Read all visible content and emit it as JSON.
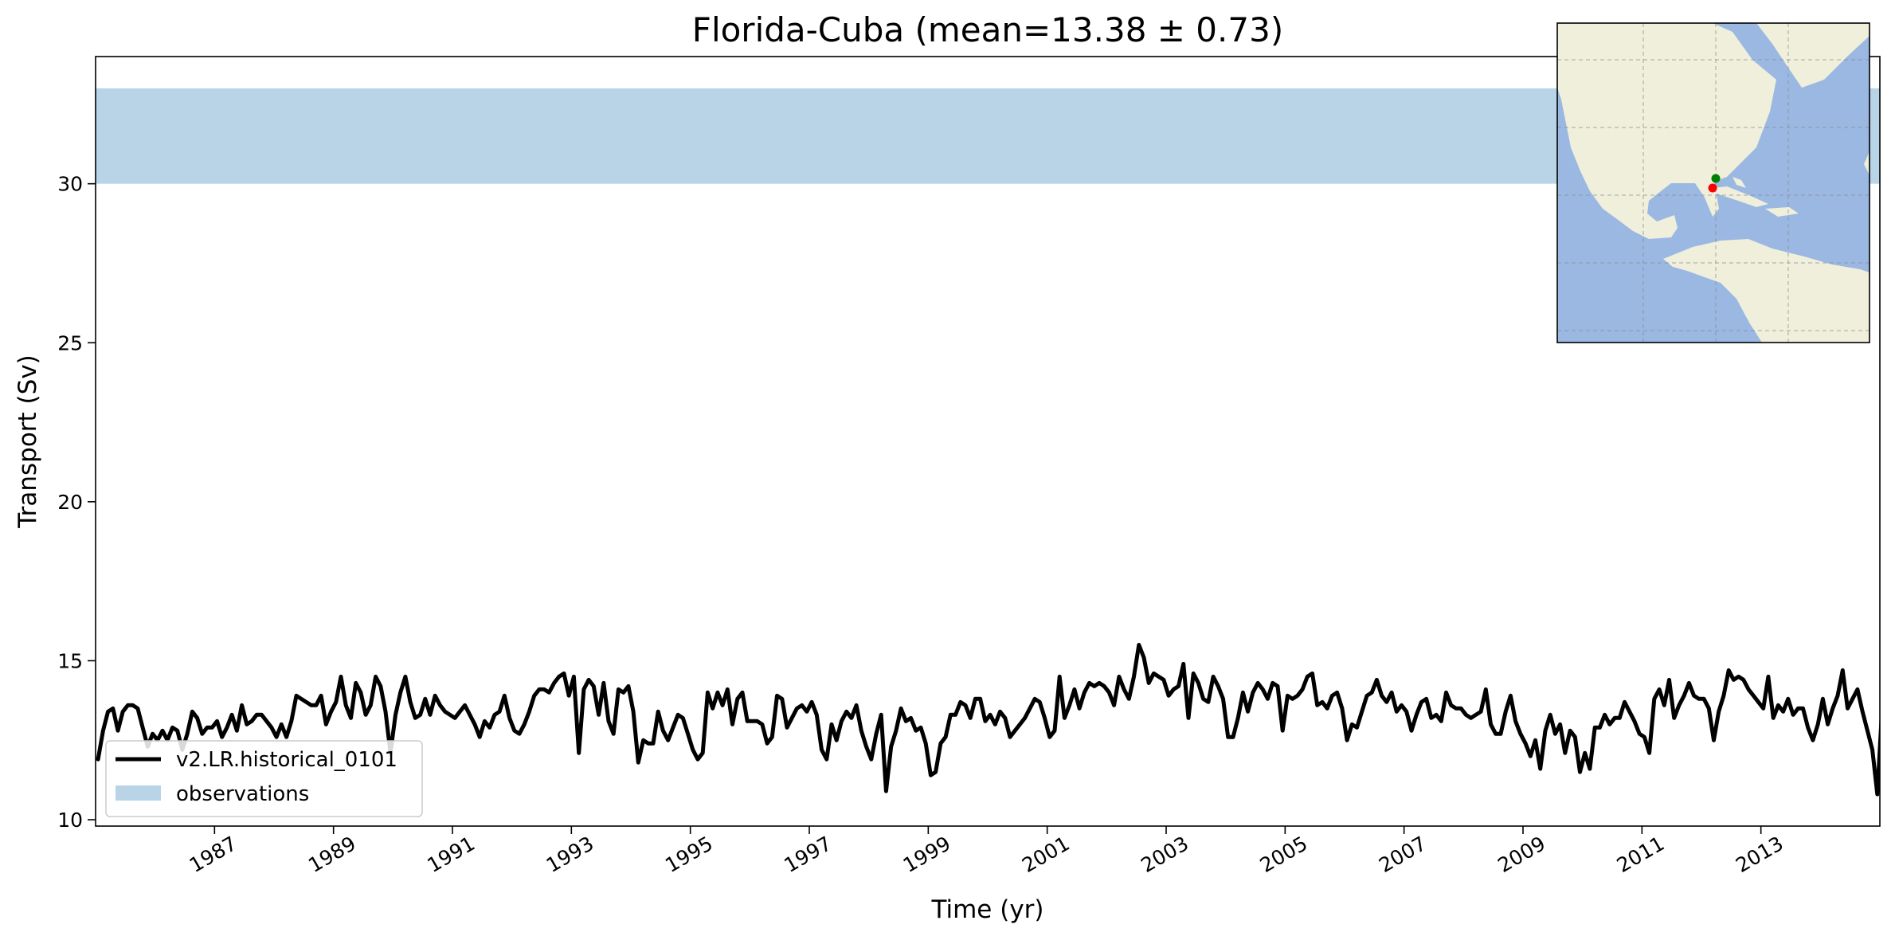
{
  "chart_data": {
    "type": "line",
    "title": "Florida-Cuba (mean=13.38 ± 0.73)",
    "xlabel": "Time (yr)",
    "ylabel": "Transport (Sv)",
    "xlim": [
      1985.0,
      2015.0
    ],
    "ylim": [
      9.8,
      34.0
    ],
    "x_ticks": [
      1987,
      1989,
      1991,
      1993,
      1995,
      1997,
      1999,
      2001,
      2003,
      2005,
      2007,
      2009,
      2011,
      2013
    ],
    "y_ticks": [
      10,
      15,
      20,
      25,
      30
    ],
    "grid": false,
    "legend_position": "lower-left",
    "observation_band": {
      "name": "observations",
      "y_range": [
        30.0,
        33.0
      ],
      "color": "#b9d4e7"
    },
    "series": [
      {
        "name": "v2.LR.historical_0101",
        "color": "#000000",
        "x_start": 1985.042,
        "x_step": 0.08333,
        "values": [
          11.9,
          12.8,
          13.4,
          13.5,
          12.8,
          13.4,
          13.6,
          13.6,
          13.5,
          12.9,
          12.3,
          12.7,
          12.5,
          12.8,
          12.5,
          12.9,
          12.8,
          12.2,
          12.7,
          13.4,
          13.2,
          12.7,
          12.9,
          12.9,
          13.1,
          12.6,
          12.9,
          13.3,
          12.8,
          13.6,
          13.0,
          13.1,
          13.3,
          13.3,
          13.1,
          12.9,
          12.6,
          13.0,
          12.6,
          13.1,
          13.9,
          13.8,
          13.7,
          13.6,
          13.6,
          13.9,
          13.0,
          13.4,
          13.7,
          14.5,
          13.6,
          13.2,
          14.3,
          14.0,
          13.3,
          13.6,
          14.5,
          14.2,
          13.4,
          12.1,
          13.3,
          14.0,
          14.5,
          13.7,
          13.2,
          13.3,
          13.8,
          13.3,
          13.9,
          13.6,
          13.4,
          13.3,
          13.2,
          13.4,
          13.6,
          13.3,
          13.0,
          12.6,
          13.1,
          12.9,
          13.3,
          13.4,
          13.9,
          13.2,
          12.8,
          12.7,
          13.0,
          13.4,
          13.9,
          14.1,
          14.1,
          14.0,
          14.3,
          14.5,
          14.6,
          13.9,
          14.5,
          12.1,
          14.1,
          14.4,
          14.2,
          13.3,
          14.3,
          13.1,
          12.7,
          14.1,
          14.0,
          14.2,
          13.4,
          11.8,
          12.5,
          12.4,
          12.4,
          13.4,
          12.8,
          12.5,
          12.9,
          13.3,
          13.2,
          12.7,
          12.2,
          11.9,
          12.1,
          14.0,
          13.5,
          14.0,
          13.6,
          14.1,
          13.0,
          13.8,
          14.0,
          13.1,
          13.1,
          13.1,
          13.0,
          12.4,
          12.6,
          13.9,
          13.8,
          12.9,
          13.2,
          13.5,
          13.6,
          13.4,
          13.7,
          13.3,
          12.2,
          11.9,
          13.0,
          12.5,
          13.1,
          13.4,
          13.2,
          13.6,
          12.8,
          12.3,
          11.9,
          12.7,
          13.3,
          10.9,
          12.3,
          12.8,
          13.5,
          13.1,
          13.2,
          12.8,
          12.9,
          12.4,
          11.4,
          11.5,
          12.4,
          12.6,
          13.3,
          13.3,
          13.7,
          13.6,
          13.2,
          13.8,
          13.8,
          13.1,
          13.3,
          13.0,
          13.4,
          13.2,
          12.6,
          12.8,
          13.0,
          13.2,
          13.5,
          13.8,
          13.7,
          13.2,
          12.6,
          12.8,
          14.5,
          13.2,
          13.6,
          14.1,
          13.5,
          14.0,
          14.3,
          14.2,
          14.3,
          14.2,
          14.0,
          13.6,
          14.5,
          14.1,
          13.8,
          14.5,
          15.5,
          15.1,
          14.3,
          14.6,
          14.5,
          14.4,
          13.9,
          14.1,
          14.2,
          14.9,
          13.2,
          14.6,
          14.3,
          13.8,
          13.7,
          14.5,
          14.2,
          13.8,
          12.6,
          12.6,
          13.2,
          14.0,
          13.4,
          14.0,
          14.3,
          14.1,
          13.8,
          14.3,
          14.2,
          12.8,
          13.9,
          13.8,
          13.9,
          14.1,
          14.5,
          14.6,
          13.6,
          13.7,
          13.5,
          13.9,
          14.0,
          13.5,
          12.5,
          13.0,
          12.9,
          13.4,
          13.9,
          14.0,
          14.4,
          13.9,
          13.7,
          14.0,
          13.4,
          13.6,
          13.4,
          12.8,
          13.3,
          13.7,
          13.8,
          13.2,
          13.3,
          13.1,
          14.0,
          13.6,
          13.5,
          13.5,
          13.3,
          13.2,
          13.3,
          13.4,
          14.1,
          13.0,
          12.7,
          12.7,
          13.4,
          13.9,
          13.1,
          12.7,
          12.4,
          12.0,
          12.5,
          11.6,
          12.8,
          13.3,
          12.7,
          13.0,
          12.1,
          12.8,
          12.6,
          11.5,
          12.1,
          11.6,
          12.9,
          12.9,
          13.3,
          13.0,
          13.2,
          13.2,
          13.7,
          13.4,
          13.1,
          12.7,
          12.6,
          12.1,
          13.8,
          14.1,
          13.6,
          14.4,
          13.2,
          13.6,
          13.9,
          14.3,
          13.9,
          13.8,
          13.8,
          13.5,
          12.5,
          13.4,
          13.9,
          14.7,
          14.4,
          14.5,
          14.4,
          14.1,
          13.9,
          13.7,
          13.5,
          14.5,
          13.2,
          13.6,
          13.4,
          13.8,
          13.3,
          13.5,
          13.5,
          12.9,
          12.5,
          13.0,
          13.8,
          13.0,
          13.5,
          13.9,
          14.7,
          13.5,
          13.8,
          14.1,
          13.4,
          12.8,
          12.2,
          10.8,
          13.6
        ]
      }
    ]
  },
  "inset_map": {
    "land_color": "#efefdb",
    "ocean_color": "#9ab8e2",
    "section_point_colors": [
      "#008000",
      "#ff0000"
    ]
  }
}
